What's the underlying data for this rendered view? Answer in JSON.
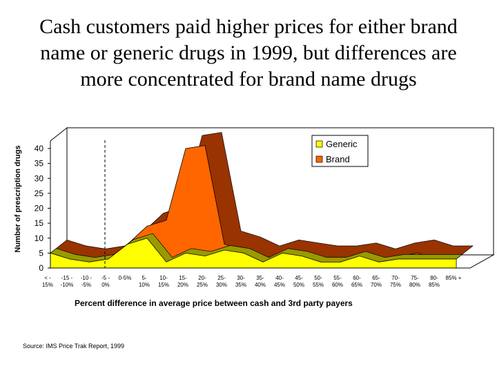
{
  "title_lines": [
    "Cash customers paid higher prices for either brand",
    "name or generic drugs in 1999, but differences are",
    "more concentrated for brand name drugs"
  ],
  "source": "Source: IMS Price Trak Report, 1999",
  "chart_data": {
    "type": "area",
    "subtype": "3d-stacked-area",
    "title": "Cash customers paid higher prices for either brand name or generic drugs in 1999, but differences are more concentrated for brand name drugs",
    "xlabel": "Percent difference in average price between cash and 3rd party payers",
    "ylabel": "Number of prescription drugs",
    "ylim": [
      0,
      40
    ],
    "yticks": [
      0,
      5,
      10,
      15,
      20,
      25,
      30,
      35,
      40
    ],
    "categories": [
      [
        "< -",
        "15%"
      ],
      [
        "-15 -",
        "-10%"
      ],
      [
        "-10 -",
        "-5%"
      ],
      [
        "-5 -",
        "0%"
      ],
      [
        "0-5%"
      ],
      [
        "5-",
        "10%"
      ],
      [
        "10-",
        "15%"
      ],
      [
        "15-",
        "20%"
      ],
      [
        "20-",
        "25%"
      ],
      [
        "25-",
        "30%"
      ],
      [
        "30-",
        "35%"
      ],
      [
        "35-",
        "40%"
      ],
      [
        "40-",
        "45%"
      ],
      [
        "45-",
        "50%"
      ],
      [
        "50-",
        "55%"
      ],
      [
        "55-",
        "60%"
      ],
      [
        "60-",
        "65%"
      ],
      [
        "65-",
        "70%"
      ],
      [
        "70-",
        "75%"
      ],
      [
        "75-",
        "80%"
      ],
      [
        "80-",
        "85%"
      ],
      [
        "85% +"
      ]
    ],
    "series": [
      {
        "name": "Generic",
        "color": "#ffff00",
        "values": [
          5,
          3,
          2,
          3,
          8,
          10,
          2,
          5,
          4,
          6,
          5,
          2,
          5,
          4,
          2,
          2,
          4,
          2,
          3,
          3,
          3,
          3
        ]
      },
      {
        "name": "Brand",
        "color": "#ff6600",
        "values": [
          0,
          0,
          0,
          0,
          0,
          4,
          14,
          35,
          37,
          2,
          1,
          1,
          0,
          0,
          1,
          1,
          0,
          0,
          1,
          2,
          0,
          0
        ]
      }
    ],
    "legend_position": "top-right",
    "reference_line_after_category": 3,
    "grid": false
  }
}
